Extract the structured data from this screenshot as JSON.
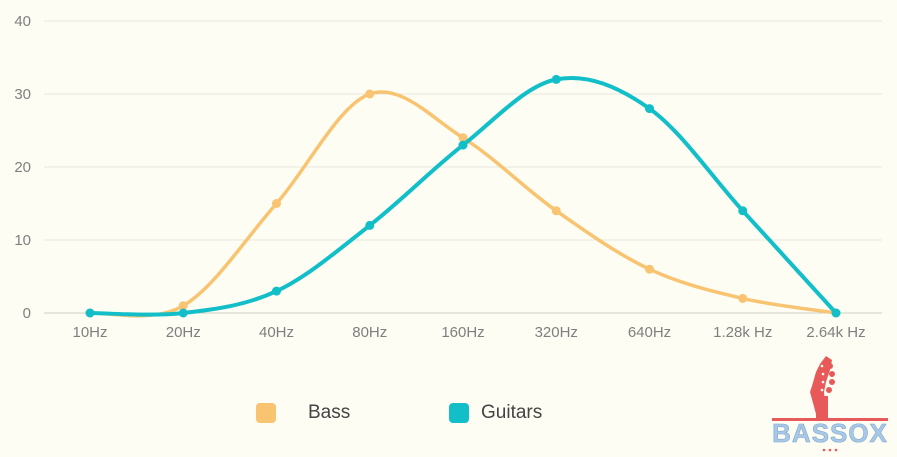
{
  "chart_data": {
    "type": "line",
    "categories": [
      "10Hz",
      "20Hz",
      "40Hz",
      "80Hz",
      "160Hz",
      "320Hz",
      "640Hz",
      "1.28k Hz",
      "2.64k Hz"
    ],
    "series": [
      {
        "name": "Bass",
        "values": [
          0,
          1,
          15,
          30,
          24,
          14,
          6,
          2,
          0
        ],
        "color": "#f8c471"
      },
      {
        "name": "Guitars",
        "values": [
          0,
          0,
          3,
          12,
          23,
          32,
          28,
          14,
          0
        ],
        "color": "#12bfc8"
      }
    ],
    "ylim": [
      0,
      40
    ],
    "yticks": [
      "0",
      "10",
      "20",
      "30",
      "40"
    ],
    "grid": true,
    "curve": "smooth",
    "legend_position": "bottom"
  },
  "logo": {
    "text": "BASSOX",
    "color": "#e85a5a",
    "text_color": "#a8c8e6"
  }
}
